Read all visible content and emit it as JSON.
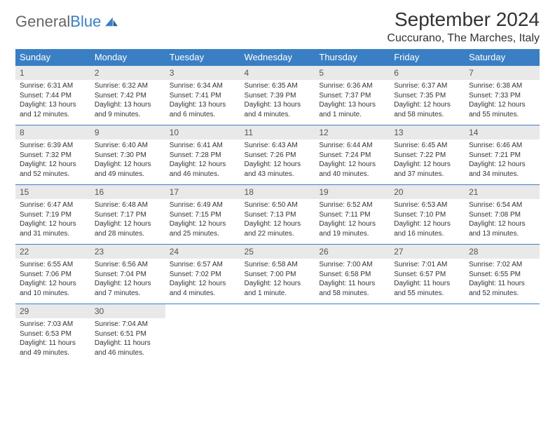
{
  "brand": {
    "part1": "General",
    "part2": "Blue"
  },
  "title": "September 2024",
  "location": "Cuccurano, The Marches, Italy",
  "colors": {
    "header_bg": "#3a7fc4",
    "header_text": "#ffffff",
    "daynum_bg": "#e9e9e9",
    "text": "#333333",
    "rule": "#3a7fc4",
    "page_bg": "#ffffff"
  },
  "weekdays": [
    "Sunday",
    "Monday",
    "Tuesday",
    "Wednesday",
    "Thursday",
    "Friday",
    "Saturday"
  ],
  "weeks": [
    [
      {
        "n": "1",
        "sunrise": "Sunrise: 6:31 AM",
        "sunset": "Sunset: 7:44 PM",
        "day": "Daylight: 13 hours and 12 minutes."
      },
      {
        "n": "2",
        "sunrise": "Sunrise: 6:32 AM",
        "sunset": "Sunset: 7:42 PM",
        "day": "Daylight: 13 hours and 9 minutes."
      },
      {
        "n": "3",
        "sunrise": "Sunrise: 6:34 AM",
        "sunset": "Sunset: 7:41 PM",
        "day": "Daylight: 13 hours and 6 minutes."
      },
      {
        "n": "4",
        "sunrise": "Sunrise: 6:35 AM",
        "sunset": "Sunset: 7:39 PM",
        "day": "Daylight: 13 hours and 4 minutes."
      },
      {
        "n": "5",
        "sunrise": "Sunrise: 6:36 AM",
        "sunset": "Sunset: 7:37 PM",
        "day": "Daylight: 13 hours and 1 minute."
      },
      {
        "n": "6",
        "sunrise": "Sunrise: 6:37 AM",
        "sunset": "Sunset: 7:35 PM",
        "day": "Daylight: 12 hours and 58 minutes."
      },
      {
        "n": "7",
        "sunrise": "Sunrise: 6:38 AM",
        "sunset": "Sunset: 7:33 PM",
        "day": "Daylight: 12 hours and 55 minutes."
      }
    ],
    [
      {
        "n": "8",
        "sunrise": "Sunrise: 6:39 AM",
        "sunset": "Sunset: 7:32 PM",
        "day": "Daylight: 12 hours and 52 minutes."
      },
      {
        "n": "9",
        "sunrise": "Sunrise: 6:40 AM",
        "sunset": "Sunset: 7:30 PM",
        "day": "Daylight: 12 hours and 49 minutes."
      },
      {
        "n": "10",
        "sunrise": "Sunrise: 6:41 AM",
        "sunset": "Sunset: 7:28 PM",
        "day": "Daylight: 12 hours and 46 minutes."
      },
      {
        "n": "11",
        "sunrise": "Sunrise: 6:43 AM",
        "sunset": "Sunset: 7:26 PM",
        "day": "Daylight: 12 hours and 43 minutes."
      },
      {
        "n": "12",
        "sunrise": "Sunrise: 6:44 AM",
        "sunset": "Sunset: 7:24 PM",
        "day": "Daylight: 12 hours and 40 minutes."
      },
      {
        "n": "13",
        "sunrise": "Sunrise: 6:45 AM",
        "sunset": "Sunset: 7:22 PM",
        "day": "Daylight: 12 hours and 37 minutes."
      },
      {
        "n": "14",
        "sunrise": "Sunrise: 6:46 AM",
        "sunset": "Sunset: 7:21 PM",
        "day": "Daylight: 12 hours and 34 minutes."
      }
    ],
    [
      {
        "n": "15",
        "sunrise": "Sunrise: 6:47 AM",
        "sunset": "Sunset: 7:19 PM",
        "day": "Daylight: 12 hours and 31 minutes."
      },
      {
        "n": "16",
        "sunrise": "Sunrise: 6:48 AM",
        "sunset": "Sunset: 7:17 PM",
        "day": "Daylight: 12 hours and 28 minutes."
      },
      {
        "n": "17",
        "sunrise": "Sunrise: 6:49 AM",
        "sunset": "Sunset: 7:15 PM",
        "day": "Daylight: 12 hours and 25 minutes."
      },
      {
        "n": "18",
        "sunrise": "Sunrise: 6:50 AM",
        "sunset": "Sunset: 7:13 PM",
        "day": "Daylight: 12 hours and 22 minutes."
      },
      {
        "n": "19",
        "sunrise": "Sunrise: 6:52 AM",
        "sunset": "Sunset: 7:11 PM",
        "day": "Daylight: 12 hours and 19 minutes."
      },
      {
        "n": "20",
        "sunrise": "Sunrise: 6:53 AM",
        "sunset": "Sunset: 7:10 PM",
        "day": "Daylight: 12 hours and 16 minutes."
      },
      {
        "n": "21",
        "sunrise": "Sunrise: 6:54 AM",
        "sunset": "Sunset: 7:08 PM",
        "day": "Daylight: 12 hours and 13 minutes."
      }
    ],
    [
      {
        "n": "22",
        "sunrise": "Sunrise: 6:55 AM",
        "sunset": "Sunset: 7:06 PM",
        "day": "Daylight: 12 hours and 10 minutes."
      },
      {
        "n": "23",
        "sunrise": "Sunrise: 6:56 AM",
        "sunset": "Sunset: 7:04 PM",
        "day": "Daylight: 12 hours and 7 minutes."
      },
      {
        "n": "24",
        "sunrise": "Sunrise: 6:57 AM",
        "sunset": "Sunset: 7:02 PM",
        "day": "Daylight: 12 hours and 4 minutes."
      },
      {
        "n": "25",
        "sunrise": "Sunrise: 6:58 AM",
        "sunset": "Sunset: 7:00 PM",
        "day": "Daylight: 12 hours and 1 minute."
      },
      {
        "n": "26",
        "sunrise": "Sunrise: 7:00 AM",
        "sunset": "Sunset: 6:58 PM",
        "day": "Daylight: 11 hours and 58 minutes."
      },
      {
        "n": "27",
        "sunrise": "Sunrise: 7:01 AM",
        "sunset": "Sunset: 6:57 PM",
        "day": "Daylight: 11 hours and 55 minutes."
      },
      {
        "n": "28",
        "sunrise": "Sunrise: 7:02 AM",
        "sunset": "Sunset: 6:55 PM",
        "day": "Daylight: 11 hours and 52 minutes."
      }
    ],
    [
      {
        "n": "29",
        "sunrise": "Sunrise: 7:03 AM",
        "sunset": "Sunset: 6:53 PM",
        "day": "Daylight: 11 hours and 49 minutes."
      },
      {
        "n": "30",
        "sunrise": "Sunrise: 7:04 AM",
        "sunset": "Sunset: 6:51 PM",
        "day": "Daylight: 11 hours and 46 minutes."
      },
      null,
      null,
      null,
      null,
      null
    ]
  ]
}
